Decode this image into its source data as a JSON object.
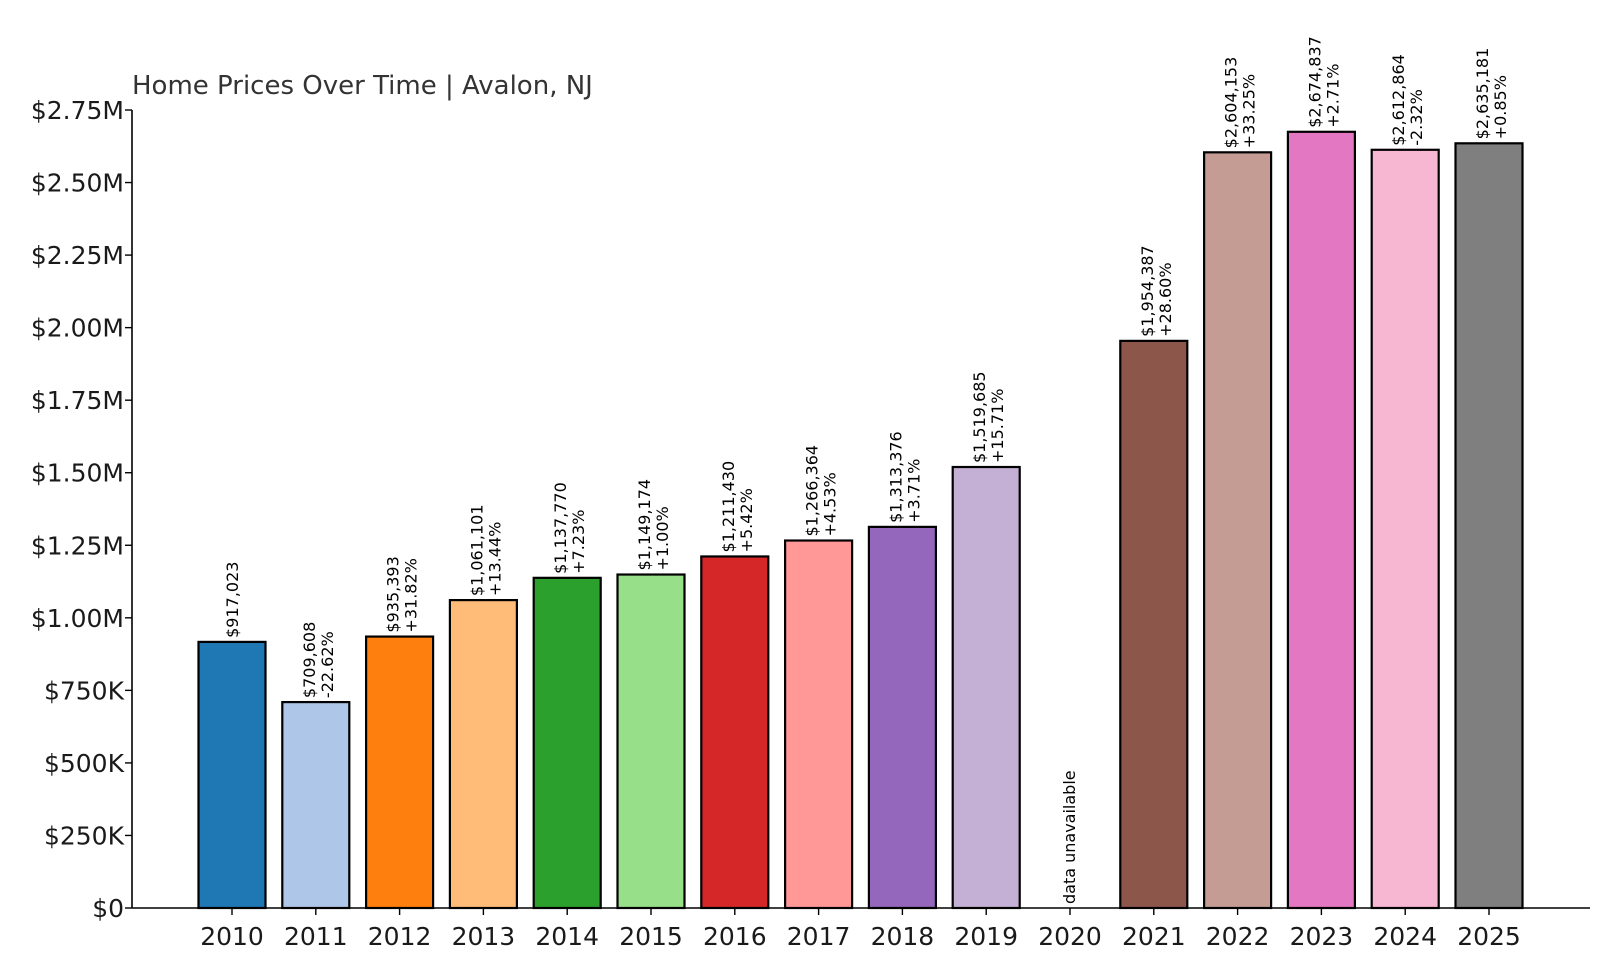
{
  "chart_data": {
    "type": "bar",
    "title": "Home Prices Over Time | Avalon, NJ",
    "xlabel": "",
    "ylabel": "",
    "ylim": [
      0,
      2750000
    ],
    "yticks": [
      0,
      250000,
      500000,
      750000,
      1000000,
      1250000,
      1500000,
      1750000,
      2000000,
      2250000,
      2500000,
      2750000
    ],
    "ytick_labels": [
      "$0",
      "$250K",
      "$500K",
      "$750K",
      "$1.00M",
      "$1.25M",
      "$1.50M",
      "$1.75M",
      "$2.00M",
      "$2.25M",
      "$2.50M",
      "$2.75M"
    ],
    "grid": false,
    "categories": [
      "2010",
      "2011",
      "2012",
      "2013",
      "2014",
      "2015",
      "2016",
      "2017",
      "2018",
      "2019",
      "2020",
      "2021",
      "2022",
      "2023",
      "2024",
      "2025"
    ],
    "values": [
      917023,
      709608,
      935393,
      1061101,
      1137770,
      1149174,
      1211430,
      1266364,
      1313376,
      1519685,
      null,
      1954387,
      2604153,
      2674837,
      2612864,
      2635181
    ],
    "value_labels": [
      "$917,023",
      "$709,608",
      "$935,393",
      "$1,061,101",
      "$1,137,770",
      "$1,149,174",
      "$1,211,430",
      "$1,266,364",
      "$1,313,376",
      "$1,519,685",
      "",
      "$1,954,387",
      "$2,604,153",
      "$2,674,837",
      "$2,612,864",
      "$2,635,181"
    ],
    "change_labels": [
      "",
      "-22.62%",
      "+31.82%",
      "+13.44%",
      "+7.23%",
      "+1.00%",
      "+5.42%",
      "+4.53%",
      "+3.71%",
      "+15.71%",
      "",
      "+28.60%",
      "+33.25%",
      "+2.71%",
      "-2.32%",
      "+0.85%"
    ],
    "missing_label": "data unavailable",
    "colors": [
      "#1f77b4",
      "#aec7e8",
      "#ff7f0e",
      "#ffbb78",
      "#2ca02c",
      "#98df8a",
      "#d62728",
      "#ff9896",
      "#9467bd",
      "#c5b0d5",
      "#8c564b",
      "#8c564b",
      "#c49c94",
      "#e377c2",
      "#f7b6d2",
      "#7f7f7f"
    ]
  }
}
